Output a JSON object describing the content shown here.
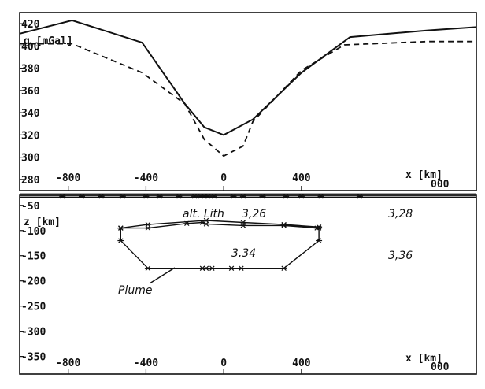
{
  "chart_data": [
    {
      "type": "line",
      "panel": "gravity",
      "ylabel": "g [mGal]",
      "xlabel": "x [km]",
      "xlabel_suffix": "000",
      "ylim": [
        270,
        430
      ],
      "xlim": [
        -1050,
        1300
      ],
      "y_ticks": [
        420,
        400,
        380,
        360,
        340,
        320,
        300,
        280
      ],
      "y_tick_labels": [
        "420",
        "400",
        "380",
        "360",
        "340",
        "320",
        "300",
        "280"
      ],
      "x_ticks": [
        -800,
        -400,
        0,
        400
      ],
      "x_tick_labels": [
        "-800",
        "-400",
        "0",
        "400"
      ],
      "series": [
        {
          "style": "solid",
          "x": [
            -1050,
            -780,
            -420,
            -200,
            -100,
            0,
            150,
            400,
            650,
            1050,
            1300
          ],
          "y": [
            411,
            423,
            403,
            348,
            327,
            320,
            334,
            376,
            408,
            414,
            417
          ]
        },
        {
          "style": "dashed",
          "x": [
            -1050,
            -780,
            -420,
            -200,
            -100,
            0,
            100,
            150,
            400,
            620,
            1050,
            1300
          ],
          "y": [
            402,
            402,
            376,
            348,
            316,
            301,
            310,
            332,
            378,
            401,
            404,
            404
          ]
        }
      ]
    },
    {
      "type": "scatter",
      "panel": "depth model",
      "ylabel": "z [km]",
      "xlabel": "x [km]",
      "xlabel_suffix": "000",
      "ylim": [
        -385,
        -30
      ],
      "xlim": [
        -1050,
        1300
      ],
      "y_ticks": [
        -50,
        -100,
        -150,
        -200,
        -250,
        -300,
        -350
      ],
      "y_tick_labels": [
        "-50",
        "-100",
        "-150",
        "-200",
        "-250",
        "-300",
        "-350"
      ],
      "x_ticks": [
        -800,
        -400,
        0,
        400
      ],
      "x_tick_labels": [
        "-800",
        "-400",
        "0",
        "400"
      ],
      "annotations": {
        "anomalous_lithosphere": "alt. Lith",
        "density_lith_anomaly": "3,26",
        "density_lith_normal": "3,28",
        "density_plume": "3,34",
        "density_mantle": "3,36",
        "plume_label": "Plume"
      },
      "moho_line": {
        "x": [
          -830,
          -730,
          -630,
          -520,
          -400,
          -330,
          -230,
          -150,
          -120,
          -100,
          -80,
          -50,
          50,
          100,
          200,
          320,
          400,
          500,
          700
        ],
        "y": [
          -32,
          -32,
          -32,
          -32,
          -32,
          -32,
          -32,
          -32,
          -32,
          -32,
          -32,
          -32,
          -32,
          -32,
          -32,
          -32,
          -32,
          -32,
          -32
        ]
      },
      "lithosphere_anomaly": {
        "x": [
          -530,
          -390,
          -190,
          -110,
          -90,
          100,
          310,
          480,
          490,
          310,
          100,
          -90,
          -390,
          -530
        ],
        "y": [
          -95,
          -95,
          -86,
          -84,
          -87,
          -90,
          -90,
          -95,
          -93,
          -88,
          -84,
          -80,
          -88,
          -95
        ]
      },
      "plume_body": {
        "x": [
          -530,
          -530,
          -390,
          -110,
          -90,
          -60,
          40,
          90,
          310,
          490,
          490
        ],
        "y": [
          -95,
          -120,
          -175,
          -175,
          -175,
          -175,
          -175,
          -175,
          -175,
          -120,
          -95
        ]
      }
    }
  ]
}
